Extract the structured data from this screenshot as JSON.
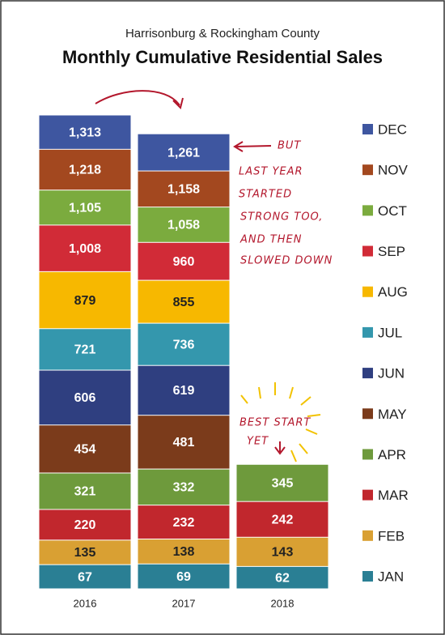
{
  "chart_data": {
    "type": "bar",
    "subtitle": "Harrisonburg & Rockingham County",
    "title": "Monthly Cumulative Residential Sales",
    "categories": [
      "2016",
      "2017",
      "2018"
    ],
    "series": [
      {
        "name": "JAN",
        "color": "#2a7f94",
        "values": [
          67,
          69,
          62
        ]
      },
      {
        "name": "FEB",
        "color": "#d9a033",
        "values": [
          135,
          138,
          143
        ]
      },
      {
        "name": "MAR",
        "color": "#c1272d",
        "values": [
          220,
          232,
          242
        ]
      },
      {
        "name": "APR",
        "color": "#6e9a3c",
        "values": [
          321,
          332,
          345
        ]
      },
      {
        "name": "MAY",
        "color": "#7b3b1b",
        "values": [
          454,
          481,
          null
        ]
      },
      {
        "name": "JUN",
        "color": "#2f3f80",
        "values": [
          606,
          619,
          null
        ]
      },
      {
        "name": "JUL",
        "color": "#3497ad",
        "values": [
          721,
          736,
          null
        ]
      },
      {
        "name": "AUG",
        "color": "#f7b800",
        "values": [
          879,
          855,
          null
        ]
      },
      {
        "name": "SEP",
        "color": "#d12b37",
        "values": [
          1008,
          960,
          null
        ]
      },
      {
        "name": "OCT",
        "color": "#7bab3e",
        "values": [
          1105,
          1058,
          null
        ]
      },
      {
        "name": "NOV",
        "color": "#a3481f",
        "values": [
          1218,
          1158,
          null
        ]
      },
      {
        "name": "DEC",
        "color": "#3e56a0",
        "values": [
          1313,
          1261,
          null
        ]
      }
    ],
    "annotations": [
      {
        "lines": [
          "BUT",
          "LAST YEAR",
          "STARTED",
          "STRONG TOO,",
          "AND THEN",
          "SLOWED DOWN"
        ]
      },
      {
        "lines": [
          "BEST START",
          "YET"
        ]
      }
    ]
  }
}
